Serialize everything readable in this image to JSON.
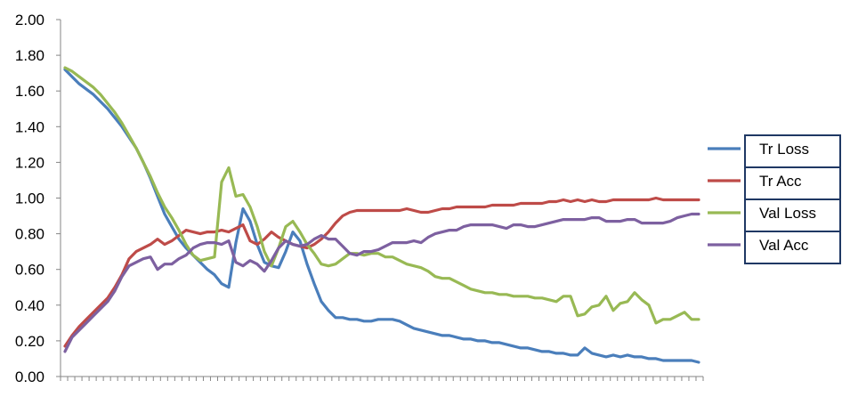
{
  "chart_data": {
    "type": "line",
    "title": "",
    "xlabel": "",
    "ylabel": "",
    "ylim": [
      0,
      2
    ],
    "y_ticks": [
      "0.00",
      "0.20",
      "0.40",
      "0.60",
      "0.80",
      "1.00",
      "1.20",
      "1.40",
      "1.60",
      "1.80",
      "2.00"
    ],
    "grid": false,
    "legend_position": "right",
    "series": [
      {
        "name": "Tr Loss",
        "color": "#4A7EBB",
        "values": [
          1.72,
          1.68,
          1.64,
          1.61,
          1.58,
          1.54,
          1.5,
          1.45,
          1.4,
          1.34,
          1.28,
          1.2,
          1.11,
          1.01,
          0.91,
          0.84,
          0.77,
          0.72,
          0.68,
          0.64,
          0.6,
          0.57,
          0.52,
          0.5,
          0.75,
          0.94,
          0.87,
          0.74,
          0.64,
          0.62,
          0.61,
          0.7,
          0.81,
          0.76,
          0.63,
          0.52,
          0.42,
          0.37,
          0.33,
          0.33,
          0.32,
          0.32,
          0.31,
          0.31,
          0.32,
          0.32,
          0.32,
          0.31,
          0.29,
          0.27,
          0.26,
          0.25,
          0.24,
          0.23,
          0.23,
          0.22,
          0.21,
          0.21,
          0.2,
          0.2,
          0.19,
          0.19,
          0.18,
          0.17,
          0.16,
          0.16,
          0.15,
          0.14,
          0.14,
          0.13,
          0.13,
          0.12,
          0.12,
          0.16,
          0.13,
          0.12,
          0.11,
          0.12,
          0.11,
          0.12,
          0.11,
          0.11,
          0.1,
          0.1,
          0.09,
          0.09,
          0.09,
          0.09,
          0.09,
          0.08
        ]
      },
      {
        "name": "Tr Acc",
        "color": "#BE4B48",
        "values": [
          0.17,
          0.23,
          0.28,
          0.32,
          0.36,
          0.4,
          0.44,
          0.5,
          0.57,
          0.66,
          0.7,
          0.72,
          0.74,
          0.77,
          0.74,
          0.76,
          0.79,
          0.82,
          0.81,
          0.8,
          0.81,
          0.81,
          0.82,
          0.81,
          0.83,
          0.85,
          0.76,
          0.74,
          0.77,
          0.81,
          0.78,
          0.76,
          0.74,
          0.73,
          0.72,
          0.74,
          0.77,
          0.81,
          0.86,
          0.9,
          0.92,
          0.93,
          0.93,
          0.93,
          0.93,
          0.93,
          0.93,
          0.93,
          0.94,
          0.93,
          0.92,
          0.92,
          0.93,
          0.94,
          0.94,
          0.95,
          0.95,
          0.95,
          0.95,
          0.95,
          0.96,
          0.96,
          0.96,
          0.96,
          0.97,
          0.97,
          0.97,
          0.97,
          0.98,
          0.98,
          0.99,
          0.98,
          0.99,
          0.98,
          0.99,
          0.98,
          0.98,
          0.99,
          0.99,
          0.99,
          0.99,
          0.99,
          0.99,
          1.0,
          0.99,
          0.99,
          0.99,
          0.99,
          0.99,
          0.99
        ]
      },
      {
        "name": "Val Loss",
        "color": "#98B954",
        "values": [
          1.73,
          1.71,
          1.68,
          1.65,
          1.62,
          1.58,
          1.53,
          1.48,
          1.42,
          1.35,
          1.28,
          1.2,
          1.12,
          1.03,
          0.95,
          0.89,
          0.82,
          0.74,
          0.68,
          0.65,
          0.66,
          0.67,
          1.09,
          1.17,
          1.01,
          1.02,
          0.95,
          0.84,
          0.7,
          0.62,
          0.72,
          0.84,
          0.87,
          0.81,
          0.74,
          0.69,
          0.63,
          0.62,
          0.63,
          0.66,
          0.69,
          0.69,
          0.68,
          0.69,
          0.69,
          0.67,
          0.67,
          0.65,
          0.63,
          0.62,
          0.61,
          0.59,
          0.56,
          0.55,
          0.55,
          0.53,
          0.51,
          0.49,
          0.48,
          0.47,
          0.47,
          0.46,
          0.46,
          0.45,
          0.45,
          0.45,
          0.44,
          0.44,
          0.43,
          0.42,
          0.45,
          0.45,
          0.34,
          0.35,
          0.39,
          0.4,
          0.45,
          0.37,
          0.41,
          0.42,
          0.47,
          0.43,
          0.4,
          0.3,
          0.32,
          0.32,
          0.34,
          0.36,
          0.32,
          0.32
        ]
      },
      {
        "name": "Val Acc",
        "color": "#7D60A0",
        "values": [
          0.14,
          0.22,
          0.26,
          0.3,
          0.34,
          0.38,
          0.42,
          0.48,
          0.56,
          0.62,
          0.64,
          0.66,
          0.67,
          0.6,
          0.63,
          0.63,
          0.66,
          0.68,
          0.72,
          0.74,
          0.75,
          0.75,
          0.74,
          0.76,
          0.64,
          0.62,
          0.65,
          0.63,
          0.59,
          0.65,
          0.72,
          0.76,
          0.74,
          0.73,
          0.74,
          0.77,
          0.79,
          0.77,
          0.77,
          0.73,
          0.69,
          0.68,
          0.7,
          0.7,
          0.71,
          0.73,
          0.75,
          0.75,
          0.75,
          0.76,
          0.75,
          0.78,
          0.8,
          0.81,
          0.82,
          0.82,
          0.84,
          0.85,
          0.85,
          0.85,
          0.85,
          0.84,
          0.83,
          0.85,
          0.85,
          0.84,
          0.84,
          0.85,
          0.86,
          0.87,
          0.88,
          0.88,
          0.88,
          0.88,
          0.89,
          0.89,
          0.87,
          0.87,
          0.87,
          0.88,
          0.88,
          0.86,
          0.86,
          0.86,
          0.86,
          0.87,
          0.89,
          0.9,
          0.91,
          0.91
        ]
      }
    ]
  }
}
